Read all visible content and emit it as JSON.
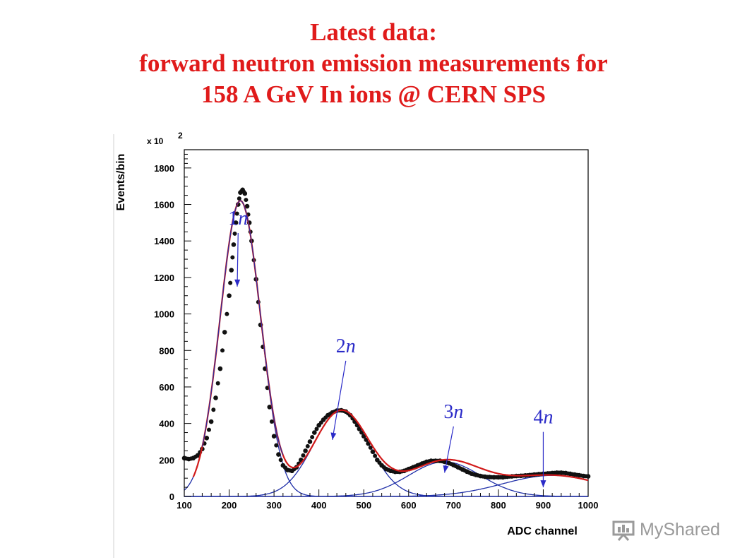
{
  "slide": {
    "title_lines": [
      "Latest  data:",
      "forward neutron emission measurements for",
      "158 A GeV In ions @ CERN SPS"
    ]
  },
  "watermark": {
    "text": "MyShared"
  },
  "chart_data": {
    "type": "line",
    "title": "",
    "xlabel": "ADC channel",
    "ylabel": "Events/bin",
    "y_scale_note": "x 10",
    "y_scale_exponent": "2",
    "xlim": [
      100,
      1000
    ],
    "ylim": [
      0,
      1900
    ],
    "xticks": [
      100,
      200,
      300,
      400,
      500,
      600,
      700,
      800,
      900,
      1000
    ],
    "yticks": [
      0,
      200,
      400,
      600,
      800,
      1000,
      1200,
      1400,
      1600,
      1800
    ],
    "components": [
      {
        "name": "1n",
        "amplitude": 1620,
        "mean": 225,
        "sigma": 45
      },
      {
        "name": "2n",
        "amplitude": 470,
        "mean": 450,
        "sigma": 62
      },
      {
        "name": "3n",
        "amplitude": 190,
        "mean": 680,
        "sigma": 80
      },
      {
        "name": "4n",
        "amplitude": 115,
        "mean": 920,
        "sigma": 110
      }
    ],
    "series": [
      {
        "name": "data points",
        "x": [
          100,
          110,
          120,
          130,
          140,
          150,
          160,
          170,
          180,
          190,
          200,
          205,
          210,
          215,
          220,
          225,
          230,
          235,
          240,
          245,
          250,
          260,
          270,
          280,
          290,
          300,
          310,
          320,
          330,
          340,
          350,
          360,
          370,
          380,
          390,
          400,
          410,
          420,
          430,
          440,
          450,
          460,
          470,
          480,
          490,
          500,
          510,
          520,
          530,
          540,
          550,
          560,
          570,
          580,
          590,
          600,
          610,
          620,
          630,
          640,
          650,
          660,
          670,
          680,
          690,
          700,
          710,
          720,
          730,
          740,
          750,
          760,
          770,
          780,
          790,
          800,
          810,
          820,
          830,
          840,
          850,
          860,
          870,
          880,
          890,
          900,
          910,
          920,
          930,
          940,
          950,
          960,
          970,
          980,
          990,
          1000
        ],
        "y": [
          210,
          205,
          210,
          225,
          260,
          320,
          410,
          540,
          700,
          900,
          1100,
          1240,
          1380,
          1500,
          1600,
          1665,
          1680,
          1660,
          1590,
          1500,
          1400,
          1190,
          940,
          700,
          490,
          330,
          230,
          170,
          145,
          140,
          160,
          200,
          250,
          300,
          350,
          390,
          420,
          445,
          460,
          470,
          472,
          465,
          445,
          410,
          370,
          330,
          290,
          245,
          200,
          170,
          150,
          140,
          135,
          135,
          140,
          150,
          160,
          170,
          180,
          190,
          195,
          195,
          195,
          190,
          182,
          172,
          160,
          148,
          136,
          125,
          118,
          112,
          108,
          106,
          105,
          105,
          105,
          108,
          110,
          112,
          113,
          115,
          117,
          120,
          122,
          124,
          126,
          128,
          130,
          130,
          128,
          124,
          120,
          116,
          112,
          110
        ]
      },
      {
        "name": "total fit (red)",
        "style": "red line",
        "x": [],
        "y": []
      },
      {
        "name": "1n component",
        "style": "blue line"
      },
      {
        "name": "2n component",
        "style": "blue line"
      },
      {
        "name": "3n component",
        "style": "blue line"
      },
      {
        "name": "4n component",
        "style": "blue line"
      }
    ],
    "annotations": [
      {
        "label": "1n",
        "text_x": 220,
        "text_y": 1490,
        "arrow_to_x": 218,
        "arrow_to_y": 1150
      },
      {
        "label": "2n",
        "text_x": 460,
        "text_y": 790,
        "arrow_to_x": 430,
        "arrow_to_y": 310
      },
      {
        "label": "3n",
        "text_x": 700,
        "text_y": 430,
        "arrow_to_x": 680,
        "arrow_to_y": 130
      },
      {
        "label": "4n",
        "text_x": 900,
        "text_y": 400,
        "arrow_to_x": 900,
        "arrow_to_y": 50
      }
    ]
  }
}
